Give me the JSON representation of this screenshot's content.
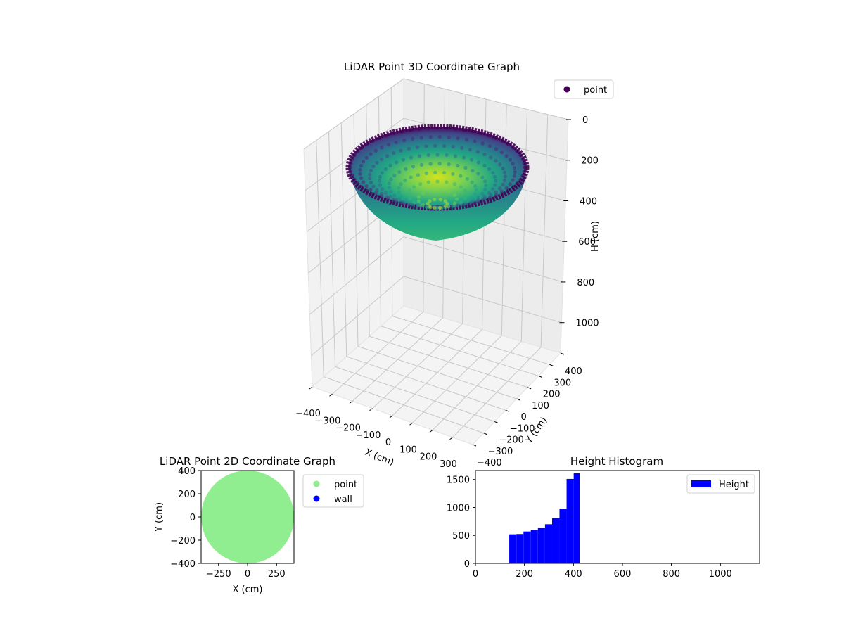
{
  "colors": {
    "wall_blue": "#0000ff",
    "point_green": "#90ee90",
    "hist_blue": "#0000ff",
    "viridis_dark": "#440154",
    "viridis_yellow": "#d5e21a"
  },
  "chart_data": [
    {
      "type": "scatter3d",
      "title": "LiDAR Point 3D Coordinate Graph",
      "xlabel": "X (cm)",
      "ylabel": "Y (cm)",
      "zlabel": "H (cm)",
      "x_ticks": [
        "−400",
        "−300",
        "−200",
        "−100",
        "0",
        "100",
        "200",
        "300"
      ],
      "y_ticks": [
        "−400",
        "−300",
        "−200",
        "−100",
        "0",
        "100",
        "200",
        "300",
        "400"
      ],
      "z_ticks": [
        "0",
        "200",
        "400",
        "600",
        "800",
        "1000"
      ],
      "xlim": [
        -400,
        400
      ],
      "ylim": [
        -400,
        400
      ],
      "zlim": [
        0,
        1150
      ],
      "z_inverted": true,
      "colormap": "viridis",
      "legend": {
        "entries": [
          "point"
        ],
        "placement": "top-right"
      },
      "surface": {
        "shape": "bowl",
        "rim_height": 140,
        "bottom_height": 420,
        "radius": 400
      }
    },
    {
      "type": "scatter",
      "title": "LiDAR Point 2D Coordinate Graph",
      "xlabel": "X (cm)",
      "ylabel": "Y (cm)",
      "x_ticks": [
        "−250",
        "0",
        "250"
      ],
      "y_ticks": [
        "400",
        "200",
        "0",
        "−200",
        "−400"
      ],
      "xlim": [
        -400,
        400
      ],
      "ylim": [
        -400,
        400
      ],
      "series": [
        {
          "name": "point",
          "shape": "filled disk",
          "radius": 400,
          "color": "#90ee90"
        },
        {
          "name": "wall",
          "points": [],
          "color": "#0000ff"
        }
      ],
      "legend": {
        "entries": [
          "point",
          "wall"
        ],
        "placement": "outside-right"
      }
    },
    {
      "type": "bar",
      "title": "Height Histogram",
      "x_ticks": [
        "0",
        "200",
        "400",
        "600",
        "800",
        "1000"
      ],
      "y_ticks": [
        "0",
        "500",
        "1000",
        "1500"
      ],
      "xlim": [
        0,
        1160
      ],
      "ylim": [
        0,
        1660
      ],
      "bins": [
        {
          "x0": 138,
          "x1": 167,
          "value": 520
        },
        {
          "x0": 167,
          "x1": 196,
          "value": 525
        },
        {
          "x0": 196,
          "x1": 226,
          "value": 570
        },
        {
          "x0": 226,
          "x1": 255,
          "value": 600
        },
        {
          "x0": 255,
          "x1": 284,
          "value": 635
        },
        {
          "x0": 284,
          "x1": 313,
          "value": 700
        },
        {
          "x0": 313,
          "x1": 343,
          "value": 810
        },
        {
          "x0": 343,
          "x1": 372,
          "value": 980
        },
        {
          "x0": 372,
          "x1": 401,
          "value": 1510
        },
        {
          "x0": 401,
          "x1": 425,
          "value": 1610
        }
      ],
      "legend": {
        "entries": [
          "Height"
        ],
        "placement": "top-right"
      }
    }
  ]
}
